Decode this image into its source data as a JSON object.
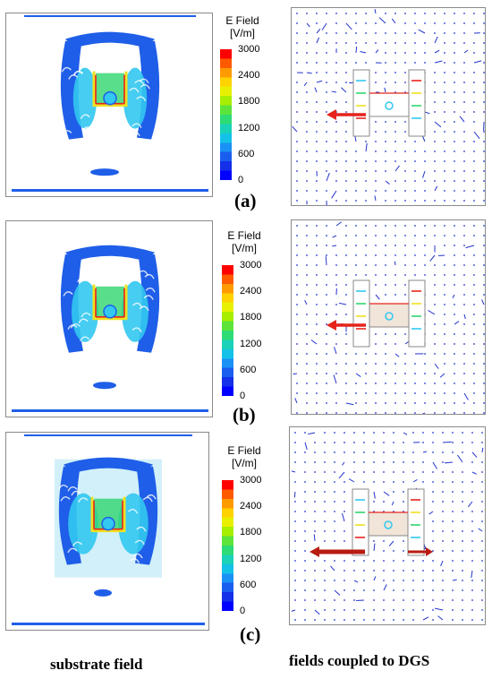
{
  "legend": {
    "title_line1": "E Field",
    "title_line2": "[V/m]",
    "ticks": [
      "3000",
      "2400",
      "1800",
      "1200",
      "600",
      "0"
    ],
    "colors": [
      "#ff0000",
      "#ff5a00",
      "#ff9b00",
      "#ffd200",
      "#e8f000",
      "#a8ee00",
      "#5ce43b",
      "#2edc76",
      "#19d2b8",
      "#14c2e8",
      "#1a92f5",
      "#1a5ef0",
      "#1430e8",
      "#0000ff"
    ]
  },
  "rows": [
    {
      "label": "(a)"
    },
    {
      "label": "(b)"
    },
    {
      "label": "(c)"
    }
  ],
  "captions": {
    "left": "substrate field",
    "right": "fields coupled to DGS"
  },
  "colors": {
    "field_blue": "#1f5ee8",
    "field_cyan": "#32c8f0",
    "field_green": "#30d66e",
    "field_yellow": "#f0e020",
    "field_red": "#e8241c",
    "arrow_red": "#e6231a",
    "arrow_dark_red": "#b81c10",
    "vector_blue": "#2233cc"
  }
}
